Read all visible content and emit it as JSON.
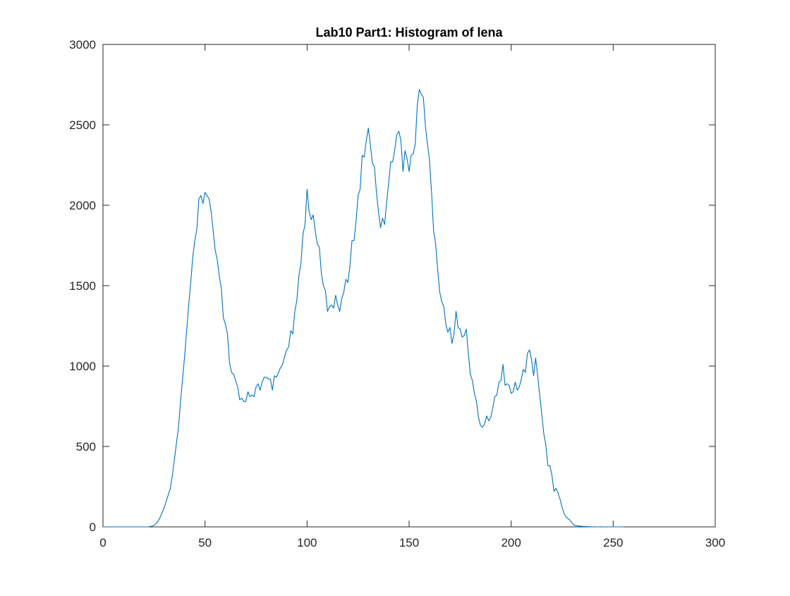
{
  "chart_data": {
    "type": "line",
    "title": "Lab10 Part1: Histogram of lena",
    "color": "#0072bd",
    "x": [
      0,
      1,
      2,
      3,
      4,
      5,
      6,
      7,
      8,
      9,
      10,
      11,
      12,
      13,
      14,
      15,
      16,
      17,
      18,
      19,
      20,
      21,
      22,
      23,
      24,
      25,
      26,
      27,
      28,
      29,
      30,
      31,
      32,
      33,
      34,
      35,
      36,
      37,
      38,
      39,
      40,
      41,
      42,
      43,
      44,
      45,
      46,
      47,
      48,
      49,
      50,
      51,
      52,
      53,
      54,
      55,
      56,
      57,
      58,
      59,
      60,
      61,
      62,
      63,
      64,
      65,
      66,
      67,
      68,
      69,
      70,
      71,
      72,
      73,
      74,
      75,
      76,
      77,
      78,
      79,
      80,
      81,
      82,
      83,
      84,
      85,
      86,
      87,
      88,
      89,
      90,
      91,
      92,
      93,
      94,
      95,
      96,
      97,
      98,
      99,
      100,
      101,
      102,
      103,
      104,
      105,
      106,
      107,
      108,
      109,
      110,
      111,
      112,
      113,
      114,
      115,
      116,
      117,
      118,
      119,
      120,
      121,
      122,
      123,
      124,
      125,
      126,
      127,
      128,
      129,
      130,
      131,
      132,
      133,
      134,
      135,
      136,
      137,
      138,
      139,
      140,
      141,
      142,
      143,
      144,
      145,
      146,
      147,
      148,
      149,
      150,
      151,
      152,
      153,
      154,
      155,
      156,
      157,
      158,
      159,
      160,
      161,
      162,
      163,
      164,
      165,
      166,
      167,
      168,
      169,
      170,
      171,
      172,
      173,
      174,
      175,
      176,
      177,
      178,
      179,
      180,
      181,
      182,
      183,
      184,
      185,
      186,
      187,
      188,
      189,
      190,
      191,
      192,
      193,
      194,
      195,
      196,
      197,
      198,
      199,
      200,
      201,
      202,
      203,
      204,
      205,
      206,
      207,
      208,
      209,
      210,
      211,
      212,
      213,
      214,
      215,
      216,
      217,
      218,
      219,
      220,
      221,
      222,
      223,
      224,
      225,
      226,
      227,
      228,
      229,
      230,
      231,
      232,
      233,
      234,
      235,
      236,
      237,
      238,
      239,
      240,
      241,
      242,
      243,
      244,
      245,
      246,
      247,
      248,
      249,
      250,
      251,
      252,
      253,
      254,
      255
    ],
    "values": [
      0,
      0,
      0,
      0,
      0,
      0,
      0,
      0,
      0,
      0,
      0,
      0,
      0,
      0,
      0,
      0,
      0,
      0,
      0,
      0,
      0,
      0,
      0,
      2,
      5,
      10,
      20,
      35,
      60,
      90,
      120,
      160,
      200,
      240,
      320,
      420,
      520,
      620,
      780,
      920,
      1060,
      1220,
      1380,
      1520,
      1680,
      1780,
      1850,
      2040,
      2060,
      2010,
      2080,
      2060,
      2040,
      1960,
      1840,
      1720,
      1660,
      1560,
      1480,
      1300,
      1260,
      1200,
      1020,
      960,
      950,
      910,
      870,
      790,
      800,
      780,
      780,
      840,
      810,
      820,
      810,
      870,
      890,
      850,
      900,
      930,
      930,
      920,
      920,
      850,
      940,
      930,
      960,
      990,
      1010,
      1060,
      1100,
      1120,
      1220,
      1200,
      1340,
      1410,
      1560,
      1640,
      1820,
      1880,
      2100,
      1960,
      1910,
      1940,
      1840,
      1760,
      1740,
      1580,
      1500,
      1470,
      1340,
      1370,
      1380,
      1360,
      1440,
      1380,
      1340,
      1420,
      1460,
      1540,
      1520,
      1620,
      1780,
      1780,
      1900,
      2060,
      2100,
      2310,
      2300,
      2400,
      2480,
      2380,
      2260,
      2240,
      2080,
      1960,
      1860,
      1920,
      1880,
      2020,
      2140,
      2270,
      2270,
      2350,
      2440,
      2460,
      2400,
      2210,
      2340,
      2290,
      2210,
      2310,
      2320,
      2380,
      2620,
      2720,
      2690,
      2670,
      2490,
      2380,
      2280,
      2080,
      1840,
      1760,
      1600,
      1460,
      1400,
      1370,
      1260,
      1210,
      1240,
      1140,
      1200,
      1340,
      1240,
      1230,
      1180,
      1190,
      1230,
      1080,
      950,
      910,
      830,
      780,
      680,
      630,
      620,
      640,
      690,
      660,
      680,
      740,
      810,
      820,
      900,
      910,
      1010,
      880,
      890,
      880,
      830,
      840,
      900,
      850,
      870,
      920,
      980,
      960,
      1080,
      1100,
      1040,
      940,
      1050,
      940,
      820,
      700,
      580,
      510,
      380,
      380,
      320,
      220,
      240,
      210,
      170,
      120,
      80,
      60,
      50,
      40,
      20,
      10,
      8,
      5,
      4,
      3,
      2,
      2,
      1,
      1,
      0,
      1,
      0,
      0,
      1,
      0,
      0,
      0,
      0,
      0,
      0,
      0,
      0,
      0,
      0,
      0
    ],
    "xlim": [
      0,
      300
    ],
    "ylim": [
      0,
      3000
    ],
    "xticks": [
      0,
      50,
      100,
      150,
      200,
      250,
      300
    ],
    "yticks": [
      0,
      500,
      1000,
      1500,
      2000,
      2500,
      3000
    ],
    "grid": false,
    "box": true
  }
}
